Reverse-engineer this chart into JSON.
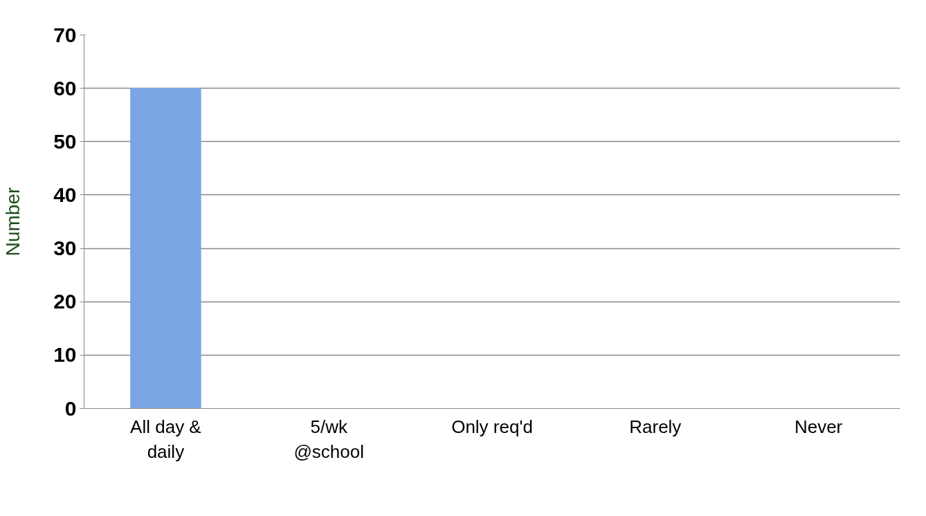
{
  "chart_data": {
    "type": "bar",
    "ylabel": "Number",
    "categories": [
      "All day & daily",
      "5/wk @school",
      "Only req'd",
      "Rarely",
      "Never"
    ],
    "values": [
      60,
      0,
      0,
      0,
      0
    ],
    "color": "#7aa6e6",
    "ylim": [
      0,
      70
    ],
    "yticks": [
      0,
      10,
      20,
      30,
      40,
      50,
      60,
      70
    ],
    "grid": "y"
  }
}
